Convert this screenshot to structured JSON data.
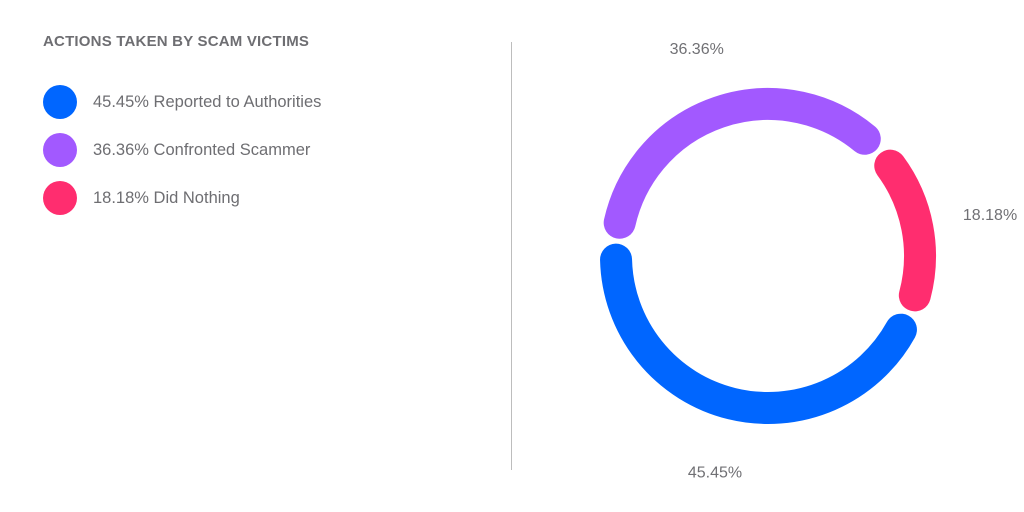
{
  "title": "ACTIONS TAKEN BY SCAM VICTIMS",
  "legend": [
    {
      "text": "45.45% Reported to Authorities",
      "color": "#0066ff"
    },
    {
      "text": "36.36% Confronted Scammer",
      "color": "#a259ff"
    },
    {
      "text": "18.18% Did Nothing",
      "color": "#ff2d6f"
    }
  ],
  "chart_data": {
    "type": "pie",
    "title": "ACTIONS TAKEN BY SCAM VICTIMS",
    "donut": true,
    "categories": [
      "Reported to Authorities",
      "Confronted Scammer",
      "Did Nothing"
    ],
    "values": [
      45.45,
      36.36,
      18.18
    ],
    "labels": [
      "45.45%",
      "36.36%",
      "18.18%"
    ],
    "colors": [
      "#0066ff",
      "#a259ff",
      "#ff2d6f"
    ],
    "legend_position": "left"
  }
}
